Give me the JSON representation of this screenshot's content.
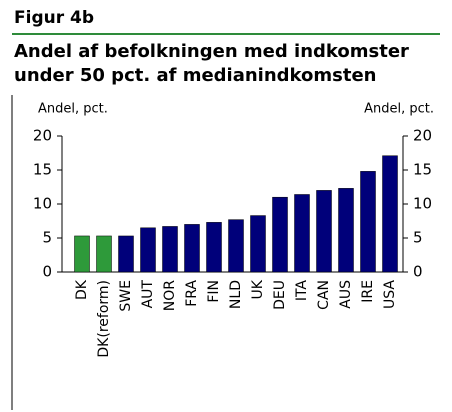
{
  "chart_data": {
    "type": "bar",
    "figure_label": "Figur 4b",
    "title": [
      "Andel af befolkningen med indkomster",
      "under 50 pct. af medianindkomsten"
    ],
    "ylabel": "Andel, pct.",
    "y2label": "Andel, pct.",
    "categories": [
      "DK",
      "DK(reform)",
      "SWE",
      "AUT",
      "NOR",
      "FRA",
      "FIN",
      "NLD",
      "UK",
      "DEU",
      "ITA",
      "CAN",
      "AUS",
      "IRE",
      "USA"
    ],
    "values": [
      5.3,
      5.3,
      5.3,
      6.5,
      6.7,
      7.0,
      7.3,
      7.7,
      8.3,
      11.0,
      11.4,
      12.0,
      12.3,
      14.8,
      17.1
    ],
    "colors": [
      "#2e9a3a",
      "#2e9a3a",
      "#00007a",
      "#00007a",
      "#00007a",
      "#00007a",
      "#00007a",
      "#00007a",
      "#00007a",
      "#00007a",
      "#00007a",
      "#00007a",
      "#00007a",
      "#00007a",
      "#00007a"
    ],
    "ylim": [
      0,
      20
    ],
    "yticks": [
      0,
      5,
      10,
      15,
      20
    ],
    "y2lim": [
      0,
      20
    ],
    "y2ticks": [
      0,
      5,
      10,
      15,
      20
    ],
    "grid": false
  }
}
